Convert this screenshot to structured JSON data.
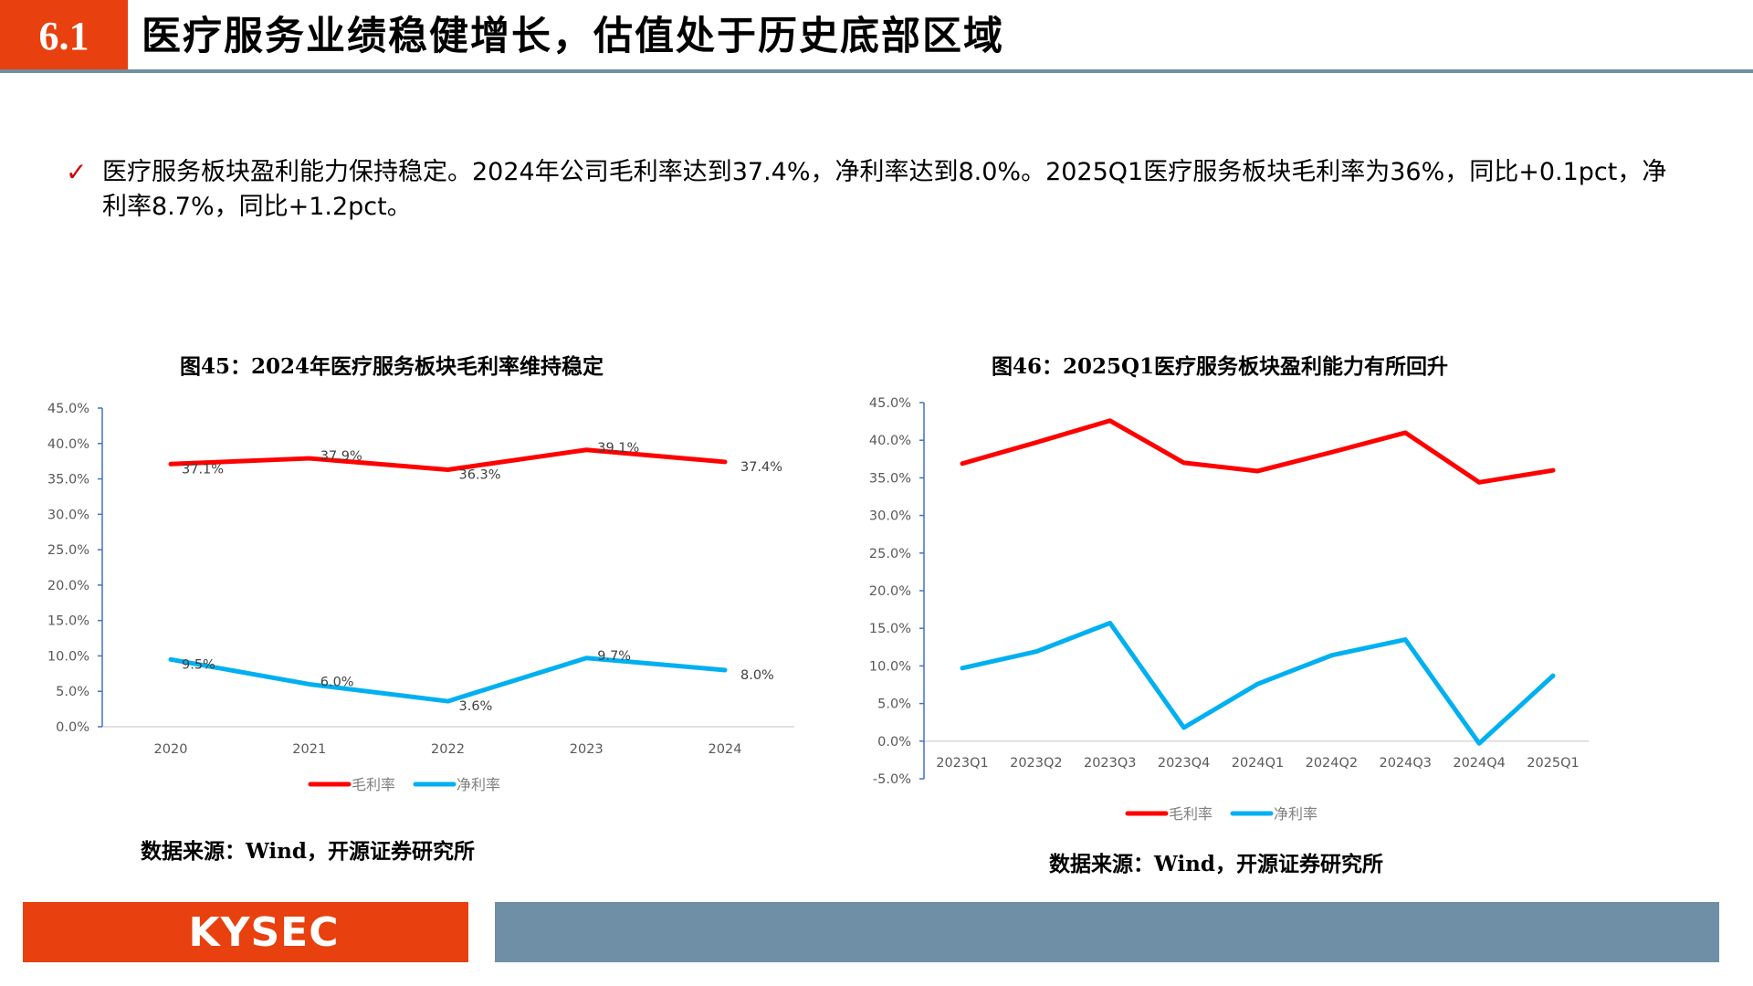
{
  "header": {
    "section_number": "6.1",
    "title": "医疗服务业绩稳健增长，估值处于历史底部区域"
  },
  "bullet": {
    "text": "医疗服务板块盈利能力保持稳定。2024年公司毛利率达到37.4%，净利率达到8.0%。2025Q1医疗服务板块毛利率为36%，同比+0.1pct，净利率8.7%，同比+1.2pct。"
  },
  "colors": {
    "accent_orange": "#E8400F",
    "slate_blue": "#6E8FA5",
    "gross_margin": "#FF0000",
    "net_margin": "#00B0F0"
  },
  "chart_data": [
    {
      "type": "line",
      "title": "图45：2024年医疗服务板块毛利率维持稳定",
      "source": "数据来源：Wind，开源证券研究所",
      "categories": [
        "2020",
        "2021",
        "2022",
        "2023",
        "2024"
      ],
      "series": [
        {
          "name": "毛利率",
          "values": [
            37.1,
            37.9,
            36.3,
            39.1,
            37.4
          ],
          "labels": [
            "37.1%",
            "37.9%",
            "36.3%",
            "39.1%",
            "37.4%"
          ]
        },
        {
          "name": "净利率",
          "values": [
            9.5,
            6.0,
            3.6,
            9.7,
            8.0
          ],
          "labels": [
            "9.5%",
            "6.0%",
            "3.6%",
            "9.7%",
            "8.0%"
          ]
        }
      ],
      "ylim": [
        0,
        45
      ],
      "yticks": [
        "0.0%",
        "5.0%",
        "10.0%",
        "15.0%",
        "20.0%",
        "25.0%",
        "30.0%",
        "35.0%",
        "40.0%",
        "45.0%"
      ],
      "ytick_values": [
        0,
        5,
        10,
        15,
        20,
        25,
        30,
        35,
        40,
        45
      ],
      "xlabel": "",
      "ylabel": "",
      "grid": false,
      "legend": "bottom"
    },
    {
      "type": "line",
      "title": "图46：2025Q1医疗服务板块盈利能力有所回升",
      "source": "数据来源：Wind，开源证券研究所",
      "categories": [
        "2023Q1",
        "2023Q2",
        "2023Q3",
        "2023Q4",
        "2024Q1",
        "2024Q2",
        "2024Q3",
        "2024Q4",
        "2025Q1"
      ],
      "series": [
        {
          "name": "毛利率",
          "values": [
            36.9,
            39.7,
            42.6,
            37.0,
            35.9,
            38.4,
            41.0,
            34.4,
            36.0
          ]
        },
        {
          "name": "净利率",
          "values": [
            9.7,
            11.9,
            15.7,
            1.8,
            7.6,
            11.4,
            13.5,
            -0.3,
            8.7
          ]
        }
      ],
      "ylim": [
        -5,
        45
      ],
      "yticks": [
        "-5.0%",
        "0.0%",
        "5.0%",
        "10.0%",
        "15.0%",
        "20.0%",
        "25.0%",
        "30.0%",
        "35.0%",
        "40.0%",
        "45.0%"
      ],
      "ytick_values": [
        -5,
        0,
        5,
        10,
        15,
        20,
        25,
        30,
        35,
        40,
        45
      ],
      "xlabel": "",
      "ylabel": "",
      "grid": false,
      "legend": "bottom"
    }
  ],
  "footer": {
    "logo_text": "KYSEC"
  }
}
